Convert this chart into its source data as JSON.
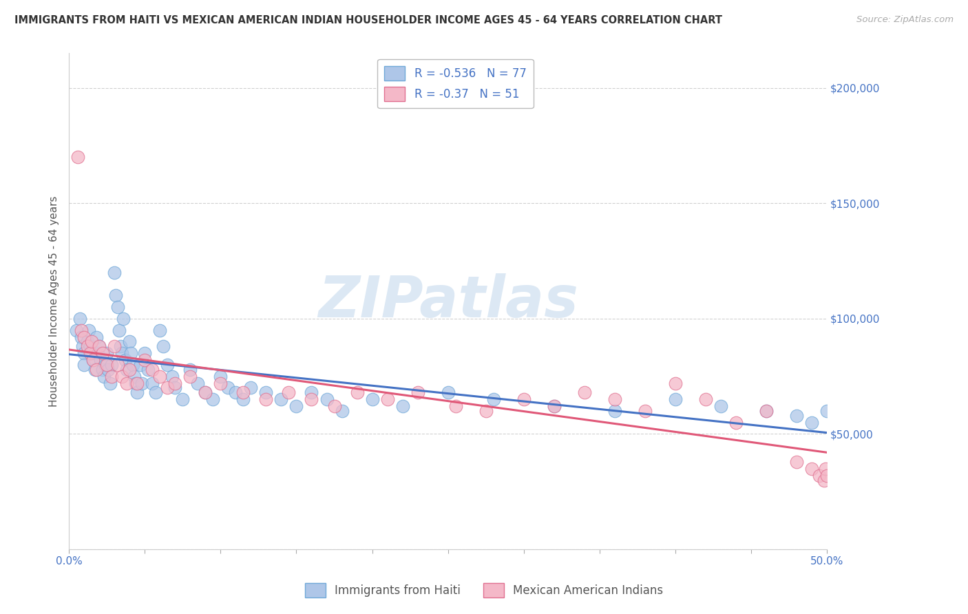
{
  "title": "IMMIGRANTS FROM HAITI VS MEXICAN AMERICAN INDIAN HOUSEHOLDER INCOME AGES 45 - 64 YEARS CORRELATION CHART",
  "source": "Source: ZipAtlas.com",
  "ylabel": "Householder Income Ages 45 - 64 years",
  "xlim": [
    0.0,
    0.5
  ],
  "ylim": [
    0,
    215000
  ],
  "xticks": [
    0.0,
    0.05,
    0.1,
    0.15,
    0.2,
    0.25,
    0.3,
    0.35,
    0.4,
    0.45,
    0.5
  ],
  "yticks": [
    0,
    50000,
    100000,
    150000,
    200000
  ],
  "yticklabels": [
    "",
    "$50,000",
    "$100,000",
    "$150,000",
    "$200,000"
  ],
  "haiti_color": "#aec6e8",
  "haiti_edge": "#6fa8d8",
  "haiti_line": "#4472c4",
  "mexican_color": "#f4b8c8",
  "mexican_edge": "#e07090",
  "mexican_line": "#e05878",
  "haiti_R": -0.536,
  "haiti_N": 77,
  "mexican_R": -0.37,
  "mexican_N": 51,
  "background_color": "#ffffff",
  "grid_color": "#d0d0d0",
  "title_color": "#333333",
  "axis_color": "#4472c4",
  "label_color": "#555555",
  "watermark_color": "#dce8f4",
  "haiti_x": [
    0.005,
    0.007,
    0.008,
    0.009,
    0.01,
    0.01,
    0.012,
    0.013,
    0.014,
    0.015,
    0.016,
    0.017,
    0.018,
    0.019,
    0.02,
    0.021,
    0.022,
    0.023,
    0.024,
    0.025,
    0.026,
    0.027,
    0.028,
    0.03,
    0.031,
    0.032,
    0.033,
    0.034,
    0.035,
    0.036,
    0.037,
    0.038,
    0.04,
    0.041,
    0.042,
    0.043,
    0.044,
    0.045,
    0.047,
    0.048,
    0.05,
    0.052,
    0.055,
    0.057,
    0.06,
    0.062,
    0.065,
    0.068,
    0.07,
    0.075,
    0.08,
    0.085,
    0.09,
    0.095,
    0.1,
    0.105,
    0.11,
    0.115,
    0.12,
    0.13,
    0.14,
    0.15,
    0.16,
    0.17,
    0.18,
    0.2,
    0.22,
    0.25,
    0.28,
    0.32,
    0.36,
    0.4,
    0.43,
    0.46,
    0.48,
    0.49,
    0.5
  ],
  "haiti_y": [
    95000,
    100000,
    92000,
    88000,
    85000,
    80000,
    90000,
    95000,
    88000,
    85000,
    82000,
    78000,
    92000,
    85000,
    88000,
    82000,
    78000,
    75000,
    80000,
    85000,
    78000,
    72000,
    80000,
    120000,
    110000,
    105000,
    95000,
    88000,
    85000,
    100000,
    82000,
    78000,
    90000,
    85000,
    80000,
    75000,
    72000,
    68000,
    80000,
    72000,
    85000,
    78000,
    72000,
    68000,
    95000,
    88000,
    80000,
    75000,
    70000,
    65000,
    78000,
    72000,
    68000,
    65000,
    75000,
    70000,
    68000,
    65000,
    70000,
    68000,
    65000,
    62000,
    68000,
    65000,
    60000,
    65000,
    62000,
    68000,
    65000,
    62000,
    60000,
    65000,
    62000,
    60000,
    58000,
    55000,
    60000
  ],
  "mexican_x": [
    0.006,
    0.008,
    0.01,
    0.012,
    0.014,
    0.015,
    0.016,
    0.018,
    0.02,
    0.022,
    0.025,
    0.028,
    0.03,
    0.032,
    0.035,
    0.038,
    0.04,
    0.045,
    0.05,
    0.055,
    0.06,
    0.065,
    0.07,
    0.08,
    0.09,
    0.1,
    0.115,
    0.13,
    0.145,
    0.16,
    0.175,
    0.19,
    0.21,
    0.23,
    0.255,
    0.275,
    0.3,
    0.32,
    0.34,
    0.36,
    0.38,
    0.4,
    0.42,
    0.44,
    0.46,
    0.48,
    0.49,
    0.495,
    0.498,
    0.499,
    0.5
  ],
  "mexican_y": [
    170000,
    95000,
    92000,
    88000,
    85000,
    90000,
    82000,
    78000,
    88000,
    85000,
    80000,
    75000,
    88000,
    80000,
    75000,
    72000,
    78000,
    72000,
    82000,
    78000,
    75000,
    70000,
    72000,
    75000,
    68000,
    72000,
    68000,
    65000,
    68000,
    65000,
    62000,
    68000,
    65000,
    68000,
    62000,
    60000,
    65000,
    62000,
    68000,
    65000,
    60000,
    72000,
    65000,
    55000,
    60000,
    38000,
    35000,
    32000,
    30000,
    35000,
    32000
  ]
}
